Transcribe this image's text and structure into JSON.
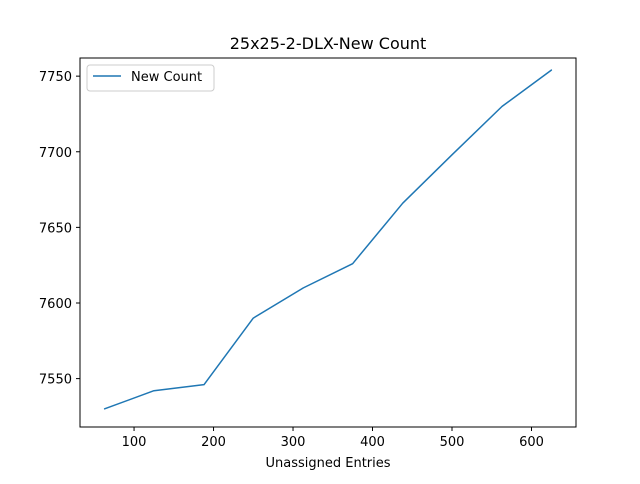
{
  "chart_data": {
    "type": "line",
    "title": "25x25-2-DLX-New Count",
    "xlabel": "Unassigned Entries",
    "ylabel": "",
    "xlim": [
      32,
      656
    ],
    "ylim": [
      7518,
      7762
    ],
    "xticks": [
      100,
      200,
      300,
      400,
      500,
      600
    ],
    "yticks": [
      7550,
      7600,
      7650,
      7700,
      7750
    ],
    "grid": false,
    "legend_position": "upper left",
    "series": [
      {
        "name": "New Count",
        "color": "#1f77b4",
        "x": [
          63,
          125,
          188,
          250,
          313,
          375,
          438,
          500,
          563,
          625
        ],
        "y": [
          7530,
          7542,
          7546,
          7590,
          7610,
          7626,
          7666,
          7698,
          7730,
          7754
        ]
      }
    ]
  }
}
